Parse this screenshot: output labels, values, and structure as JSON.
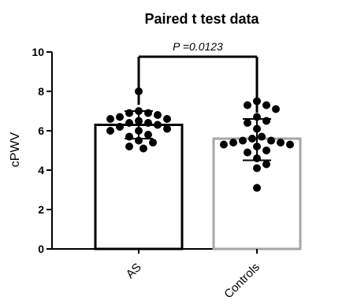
{
  "chart_data": {
    "type": "bar",
    "title": "Paired t test data",
    "xlabel": "",
    "ylabel": "cPWV",
    "ylim": [
      0,
      10
    ],
    "yticks": [
      0,
      2,
      4,
      6,
      8,
      10
    ],
    "grid": false,
    "categories": [
      "AS",
      "Controls"
    ],
    "values": [
      6.3,
      5.6
    ],
    "error": [
      {
        "low": 5.6,
        "high": 7.0
      },
      {
        "low": 4.5,
        "high": 6.6
      }
    ],
    "bar_colors": [
      "#000000",
      "#a6a6a6"
    ],
    "points": [
      [
        8.0,
        7.0,
        6.9,
        6.9,
        6.8,
        6.7,
        6.6,
        6.6,
        6.5,
        6.4,
        6.4,
        6.3,
        6.2,
        6.1,
        6.0,
        6.0,
        5.8,
        5.7,
        5.5,
        5.4,
        5.2,
        5.1
      ],
      [
        7.5,
        7.3,
        7.3,
        7.1,
        6.7,
        6.5,
        6.4,
        6.1,
        5.7,
        5.6,
        5.5,
        5.5,
        5.4,
        5.4,
        5.3,
        5.3,
        5.2,
        5.0,
        4.9,
        4.6,
        4.3,
        4.1,
        3.1
      ]
    ],
    "annotation": "P =0.0123"
  }
}
